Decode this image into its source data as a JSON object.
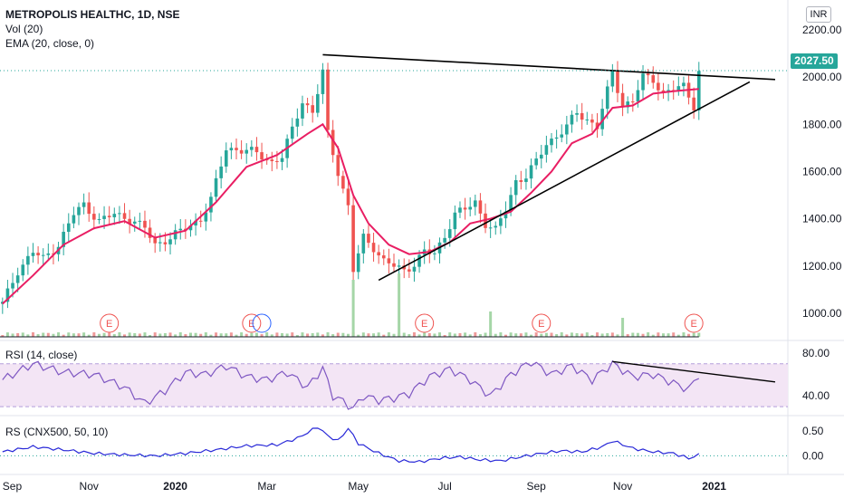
{
  "header": {
    "title": "METROPOLIS HEALTHC, 1D, NSE",
    "vol_label": "Vol (20)",
    "ema_label": "EMA (20, close, 0)",
    "rsi_label": "RSI (14, close)",
    "rs_label": "RS (CNX500, 50, 10)",
    "currency": "INR",
    "last_price": "2027.50"
  },
  "colors": {
    "up": "#26a69a",
    "down": "#ef5350",
    "ema": "#e91e63",
    "rsi": "#7e57c2",
    "rs": "#2a2ad8",
    "rsi_band": "#f3e5f5",
    "earnings": "#ef5350",
    "trendline": "#000000"
  },
  "chart_data": [
    {
      "type": "candlestick",
      "title": "METROPOLIS HEALTHC, 1D, NSE",
      "x_ticks": [
        "Sep",
        "Nov",
        "2020",
        "Mar",
        "May",
        "Jul",
        "Sep",
        "Nov",
        "2021"
      ],
      "y_ticks": [
        "2200.00",
        "2000.00",
        "1800.00",
        "1600.00",
        "1400.00",
        "1200.00",
        "1000.00"
      ],
      "ylim": [
        900,
        2250
      ],
      "last_price": 2027.5,
      "close_path": [
        [
          0,
          1040
        ],
        [
          3,
          1180
        ],
        [
          6,
          1260
        ],
        [
          8,
          1230
        ],
        [
          11,
          1290
        ],
        [
          14,
          1420
        ],
        [
          16,
          1460
        ],
        [
          19,
          1390
        ],
        [
          22,
          1420
        ],
        [
          25,
          1400
        ],
        [
          28,
          1360
        ],
        [
          30,
          1290
        ],
        [
          33,
          1320
        ],
        [
          36,
          1360
        ],
        [
          39,
          1400
        ],
        [
          41,
          1480
        ],
        [
          44,
          1700
        ],
        [
          47,
          1690
        ],
        [
          50,
          1680
        ],
        [
          53,
          1640
        ],
        [
          55,
          1660
        ],
        [
          57,
          1780
        ],
        [
          59,
          1900
        ],
        [
          61,
          1850
        ],
        [
          63,
          2020
        ],
        [
          64,
          1760
        ],
        [
          66,
          1600
        ],
        [
          68,
          1450
        ],
        [
          69,
          1180
        ],
        [
          71,
          1320
        ],
        [
          73,
          1280
        ],
        [
          75,
          1220
        ],
        [
          77,
          1200
        ],
        [
          79,
          1180
        ],
        [
          81,
          1210
        ],
        [
          83,
          1260
        ],
        [
          85,
          1250
        ],
        [
          87,
          1330
        ],
        [
          89,
          1420
        ],
        [
          91,
          1440
        ],
        [
          93,
          1470
        ],
        [
          95,
          1380
        ],
        [
          97,
          1350
        ],
        [
          99,
          1440
        ],
        [
          101,
          1560
        ],
        [
          103,
          1580
        ],
        [
          105,
          1640
        ],
        [
          107,
          1720
        ],
        [
          109,
          1750
        ],
        [
          111,
          1790
        ],
        [
          113,
          1850
        ],
        [
          115,
          1820
        ],
        [
          117,
          1790
        ],
        [
          119,
          1940
        ],
        [
          120,
          2020
        ],
        [
          122,
          1880
        ],
        [
          124,
          1900
        ],
        [
          126,
          2000
        ],
        [
          128,
          1990
        ],
        [
          130,
          1930
        ],
        [
          132,
          1950
        ],
        [
          134,
          1960
        ],
        [
          136,
          1880
        ],
        [
          137,
          2027
        ]
      ],
      "ema_path": [
        [
          0,
          1040
        ],
        [
          6,
          1160
        ],
        [
          12,
          1290
        ],
        [
          18,
          1360
        ],
        [
          24,
          1390
        ],
        [
          30,
          1320
        ],
        [
          36,
          1350
        ],
        [
          42,
          1470
        ],
        [
          48,
          1620
        ],
        [
          54,
          1670
        ],
        [
          60,
          1760
        ],
        [
          63,
          1800
        ],
        [
          66,
          1700
        ],
        [
          69,
          1500
        ],
        [
          72,
          1380
        ],
        [
          76,
          1290
        ],
        [
          80,
          1250
        ],
        [
          84,
          1260
        ],
        [
          88,
          1300
        ],
        [
          92,
          1380
        ],
        [
          96,
          1400
        ],
        [
          100,
          1430
        ],
        [
          104,
          1510
        ],
        [
          108,
          1600
        ],
        [
          112,
          1720
        ],
        [
          116,
          1760
        ],
        [
          120,
          1870
        ],
        [
          124,
          1880
        ],
        [
          128,
          1930
        ],
        [
          132,
          1940
        ],
        [
          137,
          1950
        ]
      ],
      "earnings_markers": [
        "E",
        "E",
        "E",
        "E",
        "E",
        "E"
      ],
      "trendlines": [
        {
          "name": "upper",
          "from": [
            63,
            2095
          ],
          "to": [
            152,
            1990
          ]
        },
        {
          "name": "lower",
          "from": [
            74,
            1140
          ],
          "to": [
            147,
            1980
          ]
        }
      ],
      "volume_spikes": [
        [
          69,
          0.9
        ],
        [
          78,
          1.0
        ],
        [
          96,
          0.4
        ],
        [
          122,
          0.3
        ]
      ]
    },
    {
      "type": "line",
      "title": "RSI (14, close)",
      "y_ticks": [
        "80.00",
        "40.00"
      ],
      "ylim": [
        25,
        90
      ],
      "band": [
        30,
        70
      ],
      "values_path": [
        [
          0,
          55
        ],
        [
          6,
          70
        ],
        [
          12,
          62
        ],
        [
          18,
          60
        ],
        [
          24,
          48
        ],
        [
          28,
          33
        ],
        [
          32,
          45
        ],
        [
          36,
          62
        ],
        [
          40,
          60
        ],
        [
          44,
          68
        ],
        [
          48,
          58
        ],
        [
          52,
          55
        ],
        [
          56,
          62
        ],
        [
          60,
          48
        ],
        [
          63,
          66
        ],
        [
          65,
          40
        ],
        [
          67,
          35
        ],
        [
          69,
          28
        ],
        [
          71,
          40
        ],
        [
          74,
          36
        ],
        [
          77,
          38
        ],
        [
          80,
          42
        ],
        [
          84,
          58
        ],
        [
          88,
          65
        ],
        [
          92,
          55
        ],
        [
          96,
          40
        ],
        [
          100,
          60
        ],
        [
          104,
          72
        ],
        [
          108,
          60
        ],
        [
          112,
          68
        ],
        [
          116,
          55
        ],
        [
          120,
          70
        ],
        [
          124,
          58
        ],
        [
          128,
          60
        ],
        [
          132,
          52
        ],
        [
          135,
          46
        ],
        [
          137,
          60
        ]
      ],
      "trendline": {
        "from": [
          120,
          72
        ],
        "to": [
          152,
          53
        ]
      }
    },
    {
      "type": "line",
      "title": "RS (CNX500, 50, 10)",
      "y_ticks": [
        "0.50",
        "0.00"
      ],
      "ylim": [
        -0.3,
        0.75
      ],
      "values_path": [
        [
          0,
          0.08
        ],
        [
          6,
          0.18
        ],
        [
          12,
          0.12
        ],
        [
          18,
          0.05
        ],
        [
          24,
          0.02
        ],
        [
          30,
          0.0
        ],
        [
          36,
          0.05
        ],
        [
          42,
          0.12
        ],
        [
          48,
          0.2
        ],
        [
          54,
          0.22
        ],
        [
          58,
          0.35
        ],
        [
          62,
          0.58
        ],
        [
          64,
          0.4
        ],
        [
          66,
          0.3
        ],
        [
          68,
          0.55
        ],
        [
          70,
          0.25
        ],
        [
          74,
          0.05
        ],
        [
          78,
          -0.1
        ],
        [
          82,
          -0.12
        ],
        [
          86,
          -0.05
        ],
        [
          90,
          -0.02
        ],
        [
          94,
          -0.08
        ],
        [
          98,
          -0.1
        ],
        [
          102,
          -0.02
        ],
        [
          106,
          0.05
        ],
        [
          110,
          0.1
        ],
        [
          114,
          0.08
        ],
        [
          118,
          0.18
        ],
        [
          120,
          0.3
        ],
        [
          124,
          0.15
        ],
        [
          128,
          0.08
        ],
        [
          132,
          0.05
        ],
        [
          135,
          -0.05
        ],
        [
          137,
          0.02
        ]
      ],
      "zero_line": 0
    }
  ]
}
